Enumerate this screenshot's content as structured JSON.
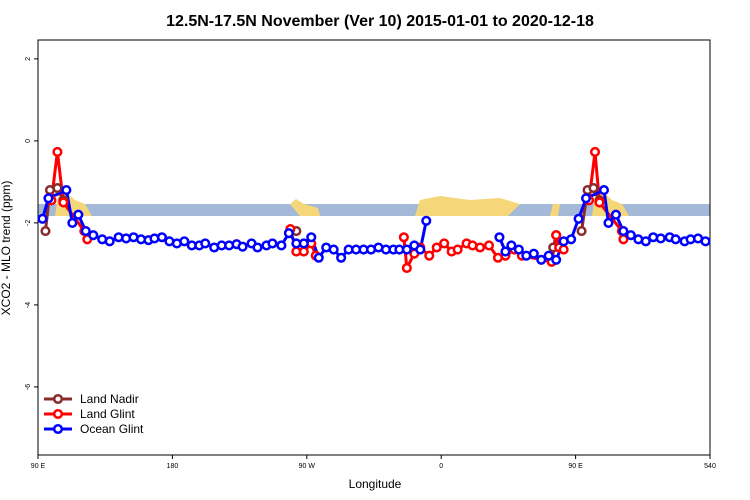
{
  "chart_data": {
    "type": "line",
    "title": "12.5N-17.5N November (Ver 10)   2015-01-01 to 2020-12-18",
    "xlabel": "Longitude",
    "ylabel": "XCO2 - MLO trend (ppm)",
    "xlim": [
      90,
      540
    ],
    "xticks": [
      {
        "value": 90,
        "label": "90 E"
      },
      180,
      {
        "value": 270,
        "label": "90 W"
      },
      {
        "value": 360,
        "label": "0"
      },
      {
        "value": 450,
        "label": "90 E"
      },
      540
    ],
    "ylim": [
      -7.66,
      2.46
    ],
    "yticks": [
      2,
      0,
      -2,
      -4,
      -6
    ],
    "legend": "bottom-left",
    "series": [
      {
        "name": "Land Nadir",
        "color": "#8b2a2a",
        "x": [
          95,
          98,
          103,
          107,
          null,
          263,
          null,
          435,
          437,
          null,
          454,
          458,
          462,
          466
        ],
        "values": [
          -2.2,
          -1.2,
          -1.15,
          -1.45,
          null,
          -2.2,
          null,
          -2.6,
          -2.3,
          null,
          -2.2,
          -1.2,
          -1.15,
          -1.45
        ]
      },
      {
        "name": "Land Glint",
        "color": "#ff0000",
        "x": [
          99,
          103,
          107,
          121,
          123,
          null,
          259,
          263,
          268,
          273,
          276,
          null,
          335,
          337,
          342,
          346,
          352,
          357,
          362,
          367,
          371,
          377,
          381,
          386,
          392,
          398,
          403,
          409,
          414,
          434,
          437,
          439,
          442,
          null,
          459,
          463,
          466,
          481,
          482
        ],
        "values": [
          -1.45,
          -0.27,
          -1.5,
          -2.2,
          -2.4,
          null,
          -2.15,
          -2.7,
          -2.7,
          -2.5,
          -2.8,
          null,
          -2.35,
          -3.1,
          -2.75,
          -2.6,
          -2.8,
          -2.6,
          -2.5,
          -2.7,
          -2.65,
          -2.5,
          -2.55,
          -2.6,
          -2.55,
          -2.85,
          -2.8,
          -2.65,
          -2.8,
          -2.95,
          -2.3,
          -2.6,
          -2.65,
          null,
          -1.45,
          -0.27,
          -1.5,
          -2.2,
          -2.4
        ]
      },
      {
        "name": "Ocean Glint",
        "color": "#0000ff",
        "x": [
          93,
          97,
          109,
          113,
          117,
          122,
          127,
          133,
          138,
          144,
          149,
          154,
          159,
          164,
          168,
          173,
          178,
          183,
          188,
          193,
          198,
          202,
          208,
          213,
          218,
          223,
          227,
          233,
          237,
          243,
          247,
          253,
          258,
          263,
          268,
          273,
          278,
          283,
          288,
          293,
          298,
          303,
          308,
          313,
          318,
          323,
          328,
          332,
          337,
          342,
          346,
          350,
          null,
          399,
          403,
          407,
          412,
          417,
          422,
          427,
          432,
          437,
          442,
          447,
          452,
          457,
          469,
          472,
          477,
          482,
          487,
          492,
          497,
          502,
          507,
          513,
          517,
          523,
          527,
          532,
          537
        ],
        "values": [
          -1.9,
          -1.4,
          -1.2,
          -2.0,
          -1.8,
          -2.2,
          -2.3,
          -2.4,
          -2.45,
          -2.35,
          -2.38,
          -2.35,
          -2.4,
          -2.42,
          -2.38,
          -2.35,
          -2.45,
          -2.5,
          -2.45,
          -2.55,
          -2.55,
          -2.5,
          -2.6,
          -2.55,
          -2.55,
          -2.52,
          -2.58,
          -2.5,
          -2.6,
          -2.55,
          -2.5,
          -2.55,
          -2.25,
          -2.5,
          -2.5,
          -2.35,
          -2.85,
          -2.6,
          -2.65,
          -2.85,
          -2.65,
          -2.65,
          -2.65,
          -2.65,
          -2.6,
          -2.65,
          -2.65,
          -2.65,
          -2.65,
          -2.55,
          -2.65,
          -1.95,
          null,
          -2.35,
          -2.7,
          -2.55,
          -2.65,
          -2.8,
          -2.75,
          -2.9,
          -2.8,
          -2.9,
          -2.45,
          -2.4,
          -1.9,
          -1.4,
          -1.2,
          -2.0,
          -1.8,
          -2.2,
          -2.3,
          -2.4,
          -2.45,
          -2.35,
          -2.38,
          -2.35,
          -2.4,
          -2.45,
          -2.4,
          -2.38,
          -2.45
        ]
      }
    ]
  }
}
